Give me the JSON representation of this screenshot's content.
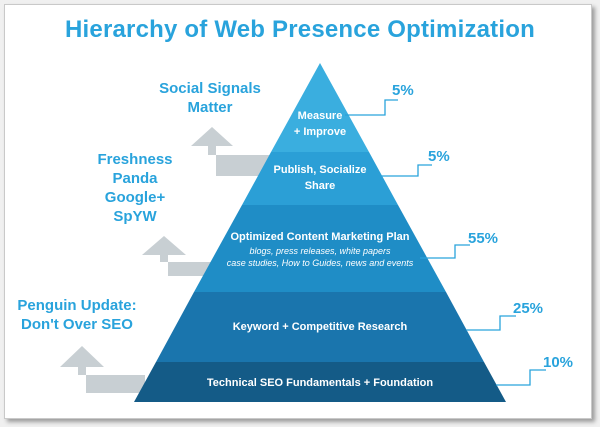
{
  "title": "Hierarchy of Web Presence Optimization",
  "levels": [
    {
      "label_line1": "Measure",
      "label_line2": "+ Improve",
      "percent": "5%"
    },
    {
      "label_line1": "Publish, Socialize",
      "label_line2": "Share",
      "percent": "5%"
    },
    {
      "label": "Optimized Content Marketing Plan",
      "sub_line1": "blogs, press releases, white papers",
      "sub_line2": "case studies, How to Guides, news and events",
      "percent": "55%"
    },
    {
      "label": "Keyword + Competitive Research",
      "percent": "25%"
    },
    {
      "label": "Technical SEO Fundamentals + Foundation",
      "percent": "10%"
    }
  ],
  "side_notes": [
    {
      "lines": [
        "Social Signals",
        "Matter"
      ]
    },
    {
      "lines": [
        "Freshness",
        "Panda",
        "Google+",
        "SpYW"
      ]
    },
    {
      "lines": [
        "Penguin Update:",
        "Don't Over SEO"
      ]
    }
  ],
  "colors": {
    "title": "#29a3dc",
    "tier_top": "#3aaedf",
    "tier_2": "#2b9fd6",
    "tier_3": "#1f8dc6",
    "tier_4": "#1a75ad",
    "tier_base": "#145b87",
    "arrow": "#c8cfd3"
  }
}
